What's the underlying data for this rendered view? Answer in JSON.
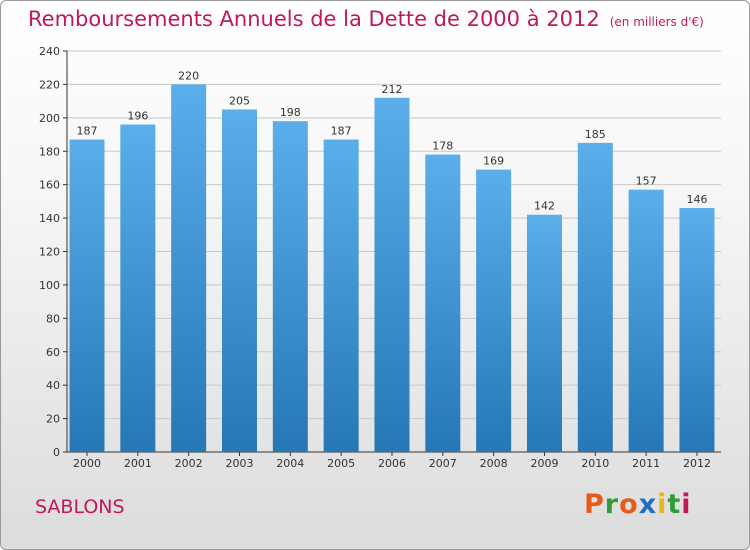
{
  "header": {
    "title": "Remboursements Annuels de la Dette de 2000 à 2012",
    "unit": "(en milliers d'€)"
  },
  "footer": {
    "commune": "SABLONS",
    "logo_text": "Proxiti"
  },
  "colors": {
    "title": "#c0185c",
    "bar_top": "#5aaeea",
    "bar_bottom": "#2577b6",
    "grid": "#c8c8c8",
    "logo": [
      "#e85a1a",
      "#2f9b3a",
      "#e85a1a",
      "#1f6fc0",
      "#e8b61a",
      "#2f9b3a",
      "#c0185c"
    ]
  },
  "chart_data": {
    "type": "bar",
    "title": "Remboursements Annuels de la Dette de 2000 à 2012",
    "subtitle": "(en milliers d'€)",
    "xlabel": "",
    "ylabel": "",
    "categories": [
      "2000",
      "2001",
      "2002",
      "2003",
      "2004",
      "2005",
      "2006",
      "2007",
      "2008",
      "2009",
      "2010",
      "2011",
      "2012"
    ],
    "values": [
      187,
      196,
      220,
      205,
      198,
      187,
      212,
      178,
      169,
      142,
      185,
      157,
      146
    ],
    "ylim": [
      0,
      240
    ],
    "yticks": [
      0,
      20,
      40,
      60,
      80,
      100,
      120,
      140,
      160,
      180,
      200,
      220,
      240
    ],
    "grid": true,
    "data_labels": true
  }
}
